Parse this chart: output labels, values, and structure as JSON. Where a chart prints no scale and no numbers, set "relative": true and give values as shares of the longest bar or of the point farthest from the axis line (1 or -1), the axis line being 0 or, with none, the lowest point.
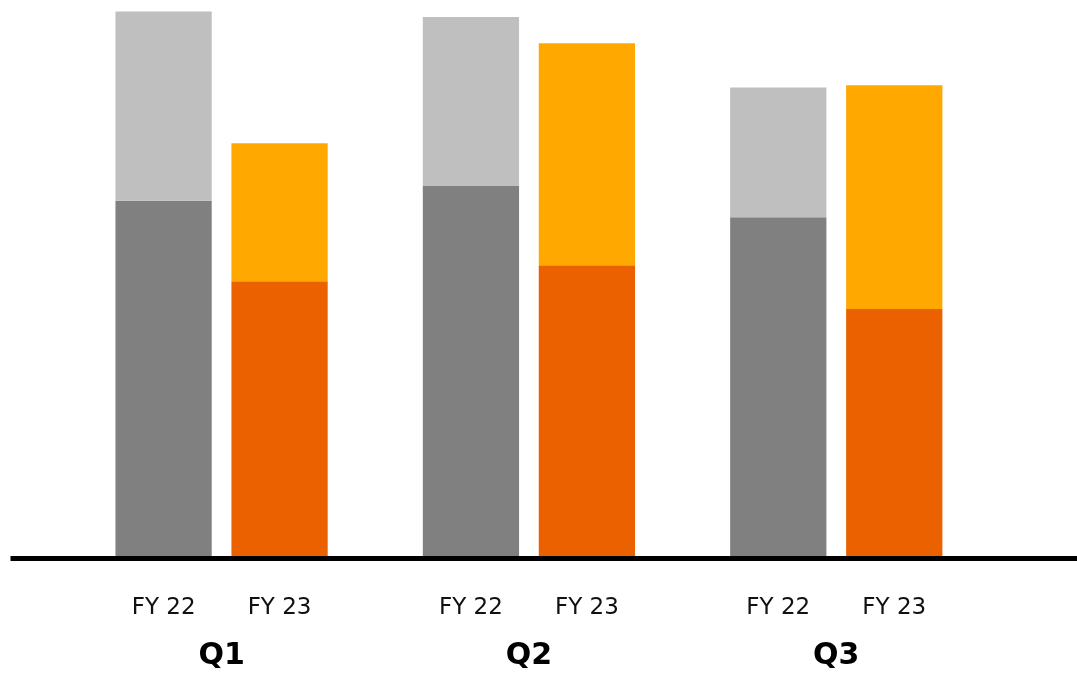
{
  "chart_data": {
    "type": "bar",
    "stacked": true,
    "relative": true,
    "categories": [
      "FY 22",
      "FY 23",
      "FY 22",
      "FY 23",
      "FY 22",
      "FY 23"
    ],
    "series": [
      {
        "colors": [
          "#808080",
          "#eb6100",
          "#808080",
          "#eb6100",
          "#808080",
          "#eb6100"
        ],
        "values": [
          0.654,
          0.507,
          0.682,
          0.536,
          0.624,
          0.456
        ]
      },
      {
        "colors": [
          "#bfbfbf",
          "#ffa800",
          "#bfbfbf",
          "#ffa800",
          "#bfbfbf",
          "#ffa800"
        ],
        "values": [
          0.346,
          0.252,
          0.308,
          0.406,
          0.237,
          0.409
        ]
      }
    ],
    "annotations": [
      "Q1",
      "Q2",
      "Q3"
    ]
  }
}
